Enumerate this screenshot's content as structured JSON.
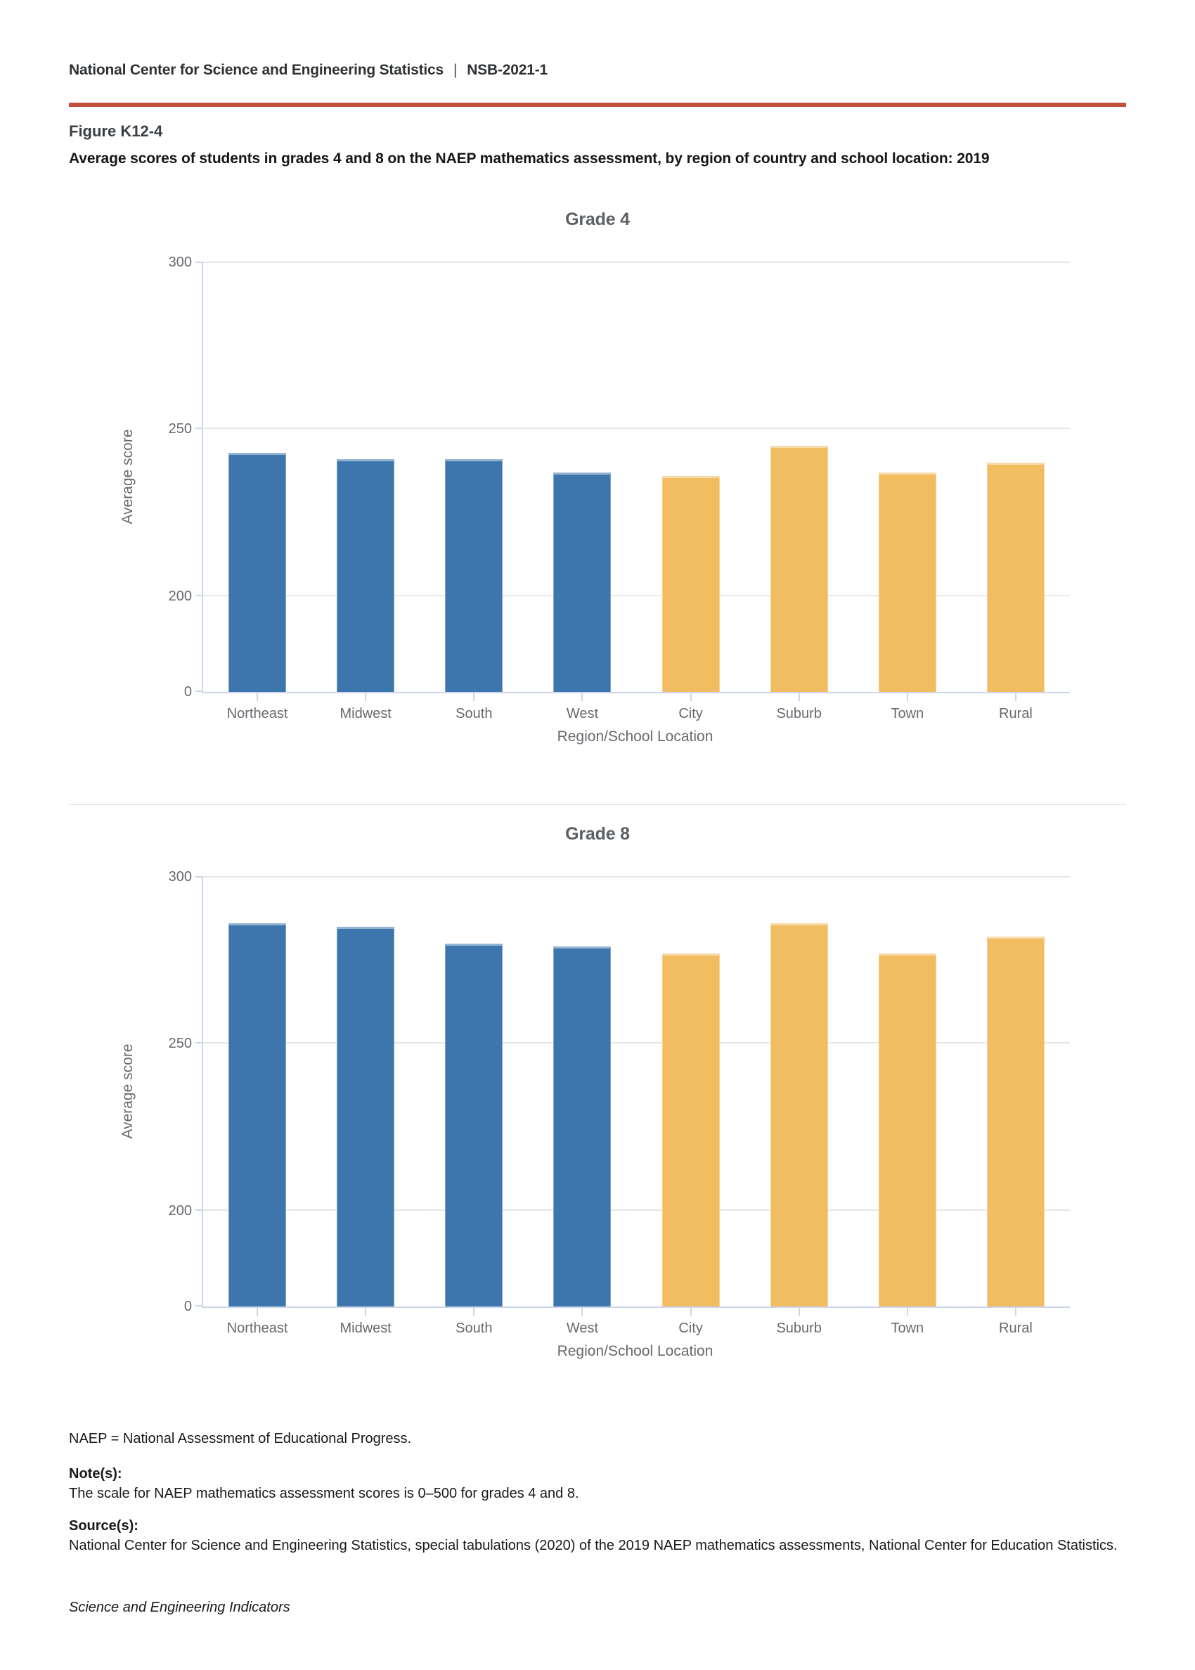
{
  "header": {
    "left": "National Center for Science and Engineering Statistics",
    "separator": "|",
    "right": "NSB-2021-1"
  },
  "figure": {
    "label": "Figure K12-4",
    "title": "Average scores of students in grades 4 and 8 on the NAEP mathematics assessment, by region of country and school location: 2019"
  },
  "colors": {
    "accent_rule": "#c0503a",
    "region_bar": "#3d76ad",
    "location_bar": "#f2bc61",
    "axis_line": "#ccd6eb",
    "gridline": "#e7e7e7",
    "label_gray": "#66696e"
  },
  "chart_data": [
    {
      "type": "bar",
      "title": "Grade 4",
      "categories": [
        "Northeast",
        "Midwest",
        "South",
        "West",
        "City",
        "Suburb",
        "Town",
        "Rural"
      ],
      "values": [
        243,
        241,
        241,
        237,
        236,
        245,
        237,
        240
      ],
      "color_key": [
        "region",
        "region",
        "region",
        "region",
        "location",
        "location",
        "location",
        "location"
      ],
      "colors": {
        "region": "#3d76ad",
        "location": "#f2bc61"
      },
      "xlabel": "Region/School Location",
      "ylabel": "Average score",
      "yticks": [
        0,
        200,
        250,
        300
      ],
      "ytick_labels": [
        "0",
        "200",
        "250",
        "300"
      ],
      "ylim": [
        0,
        300
      ],
      "axis_break_below": 200,
      "grid": true,
      "legend": "none"
    },
    {
      "type": "bar",
      "title": "Grade 8",
      "categories": [
        "Northeast",
        "Midwest",
        "South",
        "West",
        "City",
        "Suburb",
        "Town",
        "Rural"
      ],
      "values": [
        286,
        285,
        280,
        279,
        277,
        286,
        277,
        282
      ],
      "color_key": [
        "region",
        "region",
        "region",
        "region",
        "location",
        "location",
        "location",
        "location"
      ],
      "colors": {
        "region": "#3d76ad",
        "location": "#f2bc61"
      },
      "xlabel": "Region/School Location",
      "ylabel": "Average score",
      "yticks": [
        0,
        200,
        250,
        300
      ],
      "ytick_labels": [
        "0",
        "200",
        "250",
        "300"
      ],
      "ylim": [
        0,
        300
      ],
      "axis_break_below": 200,
      "grid": true,
      "legend": "none"
    }
  ],
  "footer": {
    "abbreviation_note": "NAEP = National Assessment of Educational Progress.",
    "notes_label": "Note(s):",
    "notes_text": "The scale for NAEP mathematics assessment scores is 0–500 for grades 4 and 8.",
    "source_label": "Source(s):",
    "source_text": "National Center for Science and Engineering Statistics, special tabulations (2020) of the 2019 NAEP mathematics assessments, National Center for Education Statistics.",
    "attribution": "Science and Engineering Indicators"
  }
}
